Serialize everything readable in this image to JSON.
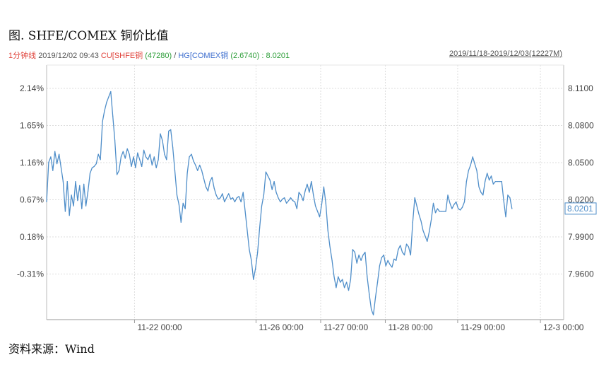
{
  "figure_title": "图. SHFE/COMEX 铜价比值",
  "source_note": "资料来源：Wind",
  "info_bar": {
    "period": "1分钟线",
    "datetime": "2019/12/02 09:43",
    "series1_label": "CU[SHFE铜",
    "series1_value": "(47280)",
    "separator": "/",
    "series2_label": "HG[COMEX铜",
    "series2_value": "(2.6740)",
    "ratio_value": ": 8.0201",
    "range": "2019/11/18-2019/12/03(12227M)"
  },
  "colors": {
    "line": "#4f8ec9",
    "series1": "#e0443c",
    "series2": "#3f6fcf",
    "value_green": "#2e9e3a",
    "grid": "#dddddd"
  },
  "chart_data": {
    "type": "line",
    "title": "",
    "xlabel": "",
    "ylabel": "",
    "left_axis": {
      "ticks": [
        "2.14%",
        "1.65%",
        "1.16%",
        "0.67%",
        "0.18%",
        "-0.31%"
      ],
      "tick_values": [
        2.14,
        1.65,
        1.16,
        0.67,
        0.18,
        -0.31
      ]
    },
    "right_axis": {
      "ticks": [
        "8.1100",
        "8.0800",
        "8.0500",
        "8.0200",
        "7.9900",
        "7.9600"
      ],
      "tick_values": [
        8.11,
        8.08,
        8.05,
        8.02,
        7.99,
        7.96
      ],
      "ylim": [
        7.9385,
        8.1255
      ],
      "current_value": "8.0201"
    },
    "x_ticks": [
      {
        "label": "11-22 00:00",
        "x": 0.17
      },
      {
        "label": "11-26 00:00",
        "x": 0.405
      },
      {
        "label": "11-27 00:00",
        "x": 0.53
      },
      {
        "label": "11-28 00:00",
        "x": 0.655
      },
      {
        "label": "11-29 00:00",
        "x": 0.795
      },
      {
        "label": "12-3 00:00",
        "x": 0.955
      }
    ],
    "xlim": [
      0,
      1
    ],
    "grid": true,
    "series": [
      {
        "values": [
          [
            0.0,
            8.025
          ],
          [
            0.004,
            8.054
          ],
          [
            0.008,
            8.058
          ],
          [
            0.012,
            8.048
          ],
          [
            0.016,
            8.062
          ],
          [
            0.02,
            8.053
          ],
          [
            0.024,
            8.06
          ],
          [
            0.028,
            8.05
          ],
          [
            0.032,
            8.04
          ],
          [
            0.036,
            8.018
          ],
          [
            0.04,
            8.04
          ],
          [
            0.044,
            8.015
          ],
          [
            0.048,
            8.03
          ],
          [
            0.052,
            8.022
          ],
          [
            0.056,
            8.04
          ],
          [
            0.06,
            8.026
          ],
          [
            0.064,
            8.037
          ],
          [
            0.068,
            8.02
          ],
          [
            0.072,
            8.038
          ],
          [
            0.076,
            8.022
          ],
          [
            0.08,
            8.033
          ],
          [
            0.084,
            8.046
          ],
          [
            0.088,
            8.05
          ],
          [
            0.092,
            8.051
          ],
          [
            0.096,
            8.053
          ],
          [
            0.1,
            8.06
          ],
          [
            0.104,
            8.056
          ],
          [
            0.108,
            8.084
          ],
          [
            0.112,
            8.092
          ],
          [
            0.116,
            8.098
          ],
          [
            0.12,
            8.102
          ],
          [
            0.124,
            8.106
          ],
          [
            0.128,
            8.088
          ],
          [
            0.132,
            8.07
          ],
          [
            0.136,
            8.045
          ],
          [
            0.14,
            8.048
          ],
          [
            0.144,
            8.058
          ],
          [
            0.148,
            8.062
          ],
          [
            0.152,
            8.057
          ],
          [
            0.156,
            8.064
          ],
          [
            0.16,
            8.06
          ],
          [
            0.164,
            8.051
          ],
          [
            0.168,
            8.058
          ],
          [
            0.172,
            8.05
          ],
          [
            0.176,
            8.061
          ],
          [
            0.18,
            8.056
          ],
          [
            0.184,
            8.051
          ],
          [
            0.188,
            8.063
          ],
          [
            0.192,
            8.058
          ],
          [
            0.196,
            8.056
          ],
          [
            0.2,
            8.06
          ],
          [
            0.204,
            8.052
          ],
          [
            0.208,
            8.058
          ],
          [
            0.212,
            8.05
          ],
          [
            0.216,
            8.056
          ],
          [
            0.22,
            8.075
          ],
          [
            0.224,
            8.07
          ],
          [
            0.228,
            8.06
          ],
          [
            0.232,
            8.056
          ],
          [
            0.236,
            8.077
          ],
          [
            0.24,
            8.078
          ],
          [
            0.244,
            8.065
          ],
          [
            0.248,
            8.048
          ],
          [
            0.252,
            8.03
          ],
          [
            0.256,
            8.023
          ],
          [
            0.26,
            8.01
          ],
          [
            0.264,
            8.024
          ],
          [
            0.268,
            8.02
          ],
          [
            0.272,
            8.046
          ],
          [
            0.276,
            8.058
          ],
          [
            0.28,
            8.06
          ],
          [
            0.284,
            8.055
          ],
          [
            0.288,
            8.052
          ],
          [
            0.292,
            8.048
          ],
          [
            0.296,
            8.052
          ],
          [
            0.3,
            8.048
          ],
          [
            0.304,
            8.042
          ],
          [
            0.308,
            8.036
          ],
          [
            0.312,
            8.033
          ],
          [
            0.316,
            8.04
          ],
          [
            0.32,
            8.043
          ],
          [
            0.324,
            8.035
          ],
          [
            0.328,
            8.03
          ],
          [
            0.332,
            8.027
          ],
          [
            0.336,
            8.028
          ],
          [
            0.34,
            8.031
          ],
          [
            0.344,
            8.025
          ],
          [
            0.348,
            8.028
          ],
          [
            0.352,
            8.031
          ],
          [
            0.356,
            8.027
          ],
          [
            0.36,
            8.028
          ],
          [
            0.364,
            8.025
          ],
          [
            0.368,
            8.028
          ],
          [
            0.372,
            8.029
          ],
          [
            0.376,
            8.025
          ],
          [
            0.38,
            8.032
          ],
          [
            0.384,
            8.018
          ],
          [
            0.388,
            8.004
          ],
          [
            0.392,
            7.99
          ],
          [
            0.396,
            7.982
          ],
          [
            0.4,
            7.968
          ],
          [
            0.404,
            7.976
          ],
          [
            0.408,
            7.988
          ],
          [
            0.412,
            8.006
          ],
          [
            0.416,
            8.022
          ],
          [
            0.42,
            8.03
          ],
          [
            0.424,
            8.047
          ],
          [
            0.428,
            8.044
          ],
          [
            0.432,
            8.041
          ],
          [
            0.436,
            8.034
          ],
          [
            0.44,
            8.04
          ],
          [
            0.444,
            8.032
          ],
          [
            0.448,
            8.028
          ],
          [
            0.452,
            8.025
          ],
          [
            0.456,
            8.027
          ],
          [
            0.46,
            8.028
          ],
          [
            0.464,
            8.024
          ],
          [
            0.468,
            8.026
          ],
          [
            0.472,
            8.028
          ],
          [
            0.476,
            8.026
          ],
          [
            0.48,
            8.025
          ],
          [
            0.484,
            8.02
          ],
          [
            0.488,
            8.032
          ],
          [
            0.492,
            8.03
          ],
          [
            0.496,
            8.026
          ],
          [
            0.5,
            8.033
          ],
          [
            0.504,
            8.038
          ],
          [
            0.508,
            8.032
          ],
          [
            0.512,
            8.04
          ],
          [
            0.516,
            8.03
          ],
          [
            0.52,
            8.022
          ],
          [
            0.524,
            8.018
          ],
          [
            0.528,
            8.014
          ],
          [
            0.532,
            8.023
          ],
          [
            0.536,
            8.036
          ],
          [
            0.54,
            8.024
          ],
          [
            0.544,
            8.004
          ],
          [
            0.548,
            7.992
          ],
          [
            0.552,
            7.982
          ],
          [
            0.556,
            7.97
          ],
          [
            0.56,
            7.962
          ],
          [
            0.564,
            7.97
          ],
          [
            0.568,
            7.966
          ],
          [
            0.572,
            7.968
          ],
          [
            0.576,
            7.962
          ],
          [
            0.58,
            7.966
          ],
          [
            0.584,
            7.96
          ],
          [
            0.588,
            7.968
          ],
          [
            0.592,
            7.99
          ],
          [
            0.596,
            7.988
          ],
          [
            0.6,
            7.98
          ],
          [
            0.604,
            7.986
          ],
          [
            0.608,
            7.982
          ],
          [
            0.612,
            7.986
          ],
          [
            0.616,
            7.988
          ],
          [
            0.62,
            7.97
          ],
          [
            0.624,
            7.957
          ],
          [
            0.628,
            7.946
          ],
          [
            0.632,
            7.942
          ],
          [
            0.636,
            7.955
          ],
          [
            0.64,
            7.966
          ],
          [
            0.644,
            7.978
          ],
          [
            0.648,
            7.984
          ],
          [
            0.652,
            7.986
          ],
          [
            0.656,
            7.978
          ],
          [
            0.66,
            7.982
          ],
          [
            0.664,
            7.979
          ],
          [
            0.668,
            7.977
          ],
          [
            0.672,
            7.983
          ],
          [
            0.676,
            7.982
          ],
          [
            0.68,
            7.99
          ],
          [
            0.684,
            7.993
          ],
          [
            0.688,
            7.988
          ],
          [
            0.692,
            7.986
          ],
          [
            0.696,
            7.994
          ],
          [
            0.7,
            7.992
          ],
          [
            0.704,
            7.986
          ],
          [
            0.708,
            8.01
          ],
          [
            0.712,
            8.028
          ],
          [
            0.716,
            8.022
          ],
          [
            0.72,
            8.016
          ],
          [
            0.724,
            8.011
          ],
          [
            0.728,
            8.004
          ],
          [
            0.732,
            8.0
          ],
          [
            0.736,
            7.996
          ],
          [
            0.74,
            8.003
          ],
          [
            0.744,
            8.012
          ],
          [
            0.748,
            8.024
          ],
          [
            0.752,
            8.017
          ],
          [
            0.756,
            8.02
          ],
          [
            0.76,
            8.018
          ],
          [
            0.764,
            8.018
          ],
          [
            0.768,
            8.018
          ],
          [
            0.772,
            8.018
          ],
          [
            0.776,
            8.03
          ],
          [
            0.78,
            8.024
          ],
          [
            0.784,
            8.02
          ],
          [
            0.788,
            8.023
          ],
          [
            0.792,
            8.025
          ],
          [
            0.796,
            8.02
          ],
          [
            0.8,
            8.019
          ],
          [
            0.804,
            8.021
          ],
          [
            0.808,
            8.025
          ],
          [
            0.812,
            8.04
          ],
          [
            0.816,
            8.048
          ],
          [
            0.82,
            8.052
          ],
          [
            0.824,
            8.058
          ],
          [
            0.828,
            8.053
          ],
          [
            0.832,
            8.048
          ],
          [
            0.836,
            8.036
          ],
          [
            0.84,
            8.032
          ],
          [
            0.844,
            8.03
          ],
          [
            0.848,
            8.04
          ],
          [
            0.852,
            8.046
          ],
          [
            0.856,
            8.041
          ],
          [
            0.86,
            8.044
          ],
          [
            0.864,
            8.038
          ],
          [
            0.868,
            8.04
          ],
          [
            0.872,
            8.04
          ],
          [
            0.876,
            8.04
          ],
          [
            0.88,
            8.04
          ],
          [
            0.884,
            8.026
          ],
          [
            0.888,
            8.014
          ],
          [
            0.892,
            8.03
          ],
          [
            0.896,
            8.028
          ],
          [
            0.9,
            8.02
          ]
        ]
      }
    ]
  }
}
